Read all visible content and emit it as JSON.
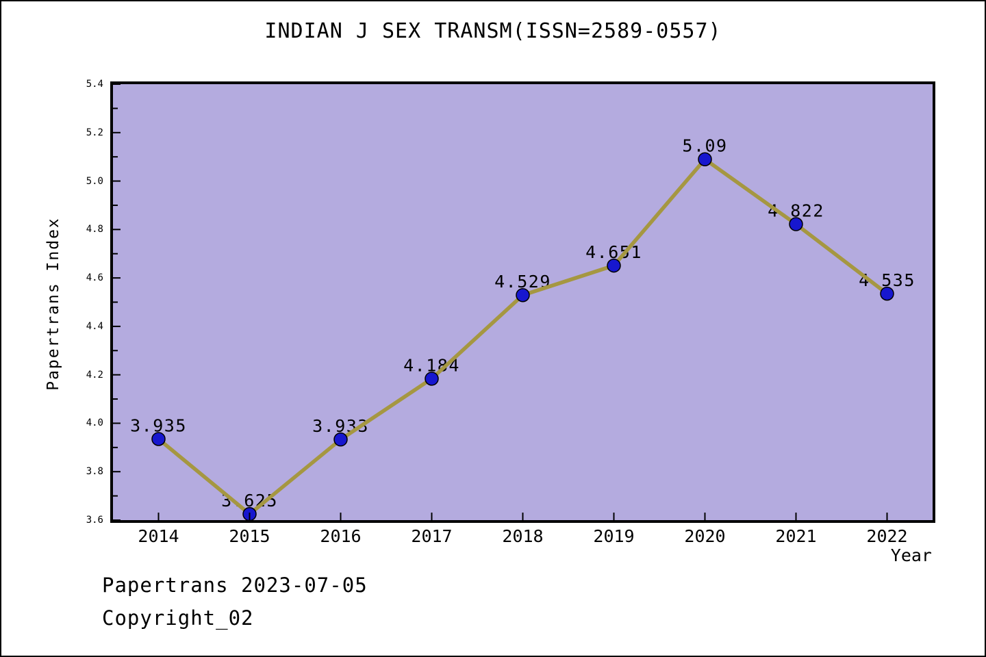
{
  "chart_data": {
    "type": "line",
    "title": "INDIAN J SEX TRANSM(ISSN=2589-0557)",
    "xlabel": "Year",
    "ylabel": "Papertrans Index",
    "x": [
      2014,
      2015,
      2016,
      2017,
      2018,
      2019,
      2020,
      2021,
      2022
    ],
    "xtick_labels": [
      "2014",
      "2015",
      "2016",
      "2017",
      "2018",
      "2019",
      "2020",
      "2021",
      "2022"
    ],
    "series": [
      {
        "name": "Papertrans Index",
        "values": [
          3.935,
          3.625,
          3.933,
          4.184,
          4.529,
          4.651,
          5.09,
          4.822,
          4.535
        ],
        "point_labels": [
          "3.935",
          "3.625",
          "3.933",
          "4.184",
          "4.529",
          "4.651",
          "5.09",
          "4.822",
          "4.535"
        ]
      }
    ],
    "xlim": [
      2013.5,
      2022.5
    ],
    "ylim": [
      3.6,
      5.4
    ],
    "ytick_labels": [
      "3.6",
      "3.8",
      "4.0",
      "4.2",
      "4.4",
      "4.6",
      "4.8",
      "5.0",
      "5.2",
      "5.4"
    ],
    "ytick_minor_step": 0.1,
    "grid": false,
    "legend": "none",
    "colors": {
      "plot_bg": "#b4abdf",
      "frame": "#000000",
      "line": "#a59741",
      "marker_fill": "#1717cf",
      "marker_edge": "#000000",
      "text": "#000000"
    }
  },
  "footer": {
    "line1": "Papertrans 2023-07-05",
    "line2": "Copyright_02"
  }
}
